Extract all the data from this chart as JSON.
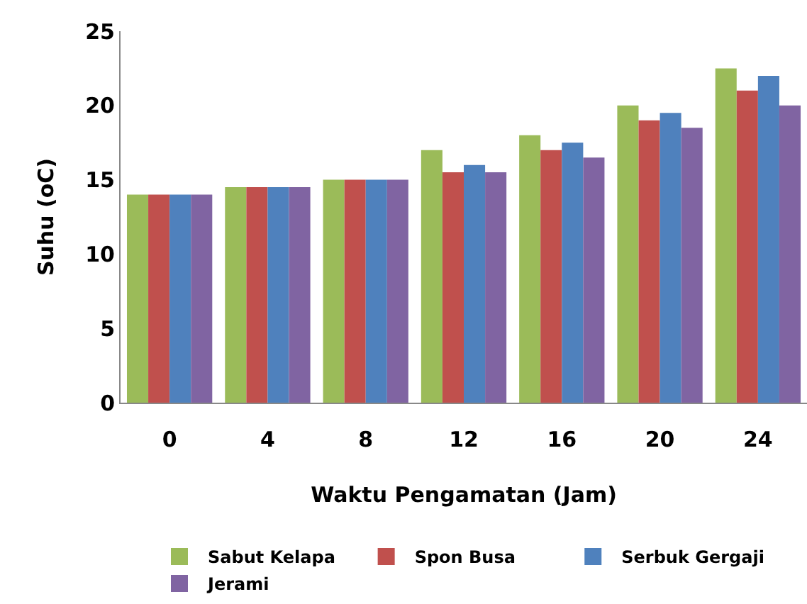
{
  "chart_data": {
    "type": "bar",
    "xlabel": "Waktu Pengamatan (Jam)",
    "ylabel": "Suhu (oC)",
    "categories": [
      "0",
      "4",
      "8",
      "12",
      "16",
      "20",
      "24"
    ],
    "series": [
      {
        "name": "Sabut Kelapa",
        "color": "#9bbb59",
        "values": [
          14,
          14.5,
          15,
          17,
          18,
          20,
          22.5
        ]
      },
      {
        "name": "Spon Busa",
        "color": "#c0504d",
        "values": [
          14,
          14.5,
          15,
          15.5,
          17,
          19,
          21
        ]
      },
      {
        "name": "Serbuk Gergaji",
        "color": "#4f81bd",
        "values": [
          14,
          14.5,
          15,
          16,
          17.5,
          19.5,
          22
        ]
      },
      {
        "name": "Jerami",
        "color": "#8064a2",
        "values": [
          14,
          14.5,
          15,
          15.5,
          16.5,
          18.5,
          20
        ]
      }
    ],
    "ylim": [
      0,
      25
    ],
    "yticks": [
      0,
      5,
      10,
      15,
      20,
      25
    ],
    "legend": "bottom"
  }
}
